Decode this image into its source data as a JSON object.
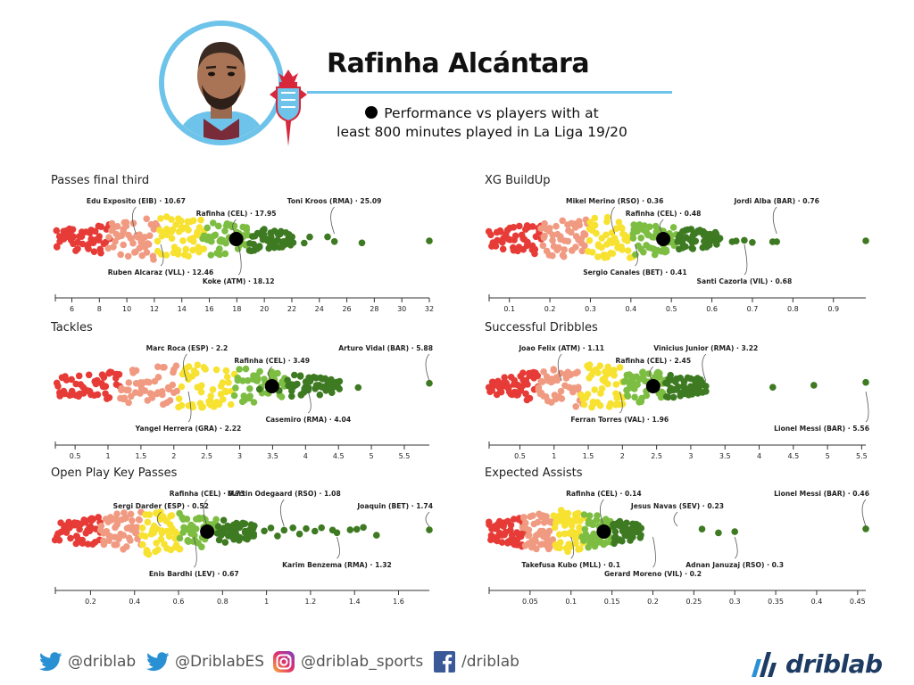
{
  "header": {
    "player_name": "Rafinha Alcántara",
    "subtitle_line1": "Performance vs players with at",
    "subtitle_line2": "least 800 minutes played in La Liga 19/20",
    "accent_color": "#6ec3ea",
    "crest_color": "#d7283b"
  },
  "footer": {
    "twitter_1": "@driblab",
    "twitter_2": "@DriblabES",
    "instagram": "@driblab_sports",
    "facebook": "/driblab",
    "brand": "driblab",
    "brand_color": "#1e3b63",
    "icons": [
      "twitter-icon",
      "twitter-icon",
      "instagram-icon",
      "facebook-icon",
      "driblab-logo-icon"
    ]
  },
  "palette": [
    "#e63b36",
    "#f19a82",
    "#f7e231",
    "#7cbd42",
    "#3e7a22"
  ],
  "chart_data": [
    {
      "type": "scatter",
      "title": "Passes final third",
      "min": 4.8,
      "max": 32,
      "ticks": [
        6,
        8,
        10,
        12,
        14,
        16,
        18,
        20,
        22,
        24,
        26,
        28,
        30,
        32
      ],
      "highlight": 17.95,
      "labels": [
        {
          "text": "Edu Exposito (EIB) · 10.67",
          "value": 10.67,
          "pos": "above"
        },
        {
          "text": "Rafinha (CEL) · 17.95",
          "value": 17.95,
          "pos": "above"
        },
        {
          "text": "Toni Kroos (RMA) · 25.09",
          "value": 25.09,
          "pos": "above"
        },
        {
          "text": "Ruben Alcaraz (VLL) · 12.46",
          "value": 12.46,
          "pos": "below"
        },
        {
          "text": "Koke (ATM) · 18.12",
          "value": 18.12,
          "pos": "below"
        }
      ],
      "outliers": [
        20.5,
        21.3,
        22.1,
        22.9,
        23.3,
        24.6,
        25.1,
        27.1,
        32.0
      ]
    },
    {
      "type": "scatter",
      "title": "XG BuildUp",
      "min": 0.05,
      "max": 0.98,
      "ticks": [
        0.1,
        0.2,
        0.3,
        0.4,
        0.5,
        0.6,
        0.7,
        0.8,
        0.9
      ],
      "highlight": 0.48,
      "labels": [
        {
          "text": "Mikel Merino (RSO) · 0.36",
          "value": 0.36,
          "pos": "above"
        },
        {
          "text": "Rafinha (CEL) · 0.48",
          "value": 0.48,
          "pos": "above"
        },
        {
          "text": "Jordi Alba (BAR) · 0.76",
          "value": 0.76,
          "pos": "above"
        },
        {
          "text": "Sergio Canales (BET) · 0.41",
          "value": 0.41,
          "pos": "below"
        },
        {
          "text": "Santi Cazorla (VIL) · 0.68",
          "value": 0.68,
          "pos": "below"
        }
      ],
      "outliers": [
        0.58,
        0.6,
        0.62,
        0.65,
        0.66,
        0.68,
        0.7,
        0.75,
        0.76,
        0.98
      ]
    },
    {
      "type": "scatter",
      "title": "Tackles",
      "min": 0.2,
      "max": 5.88,
      "ticks": [
        0.5,
        1,
        1.5,
        2,
        2.5,
        3,
        3.5,
        4,
        4.5,
        5,
        5.5
      ],
      "highlight": 3.49,
      "labels": [
        {
          "text": "Marc Roca (ESP) · 2.2",
          "value": 2.2,
          "pos": "above"
        },
        {
          "text": "Rafinha (CEL) · 3.49",
          "value": 3.49,
          "pos": "above"
        },
        {
          "text": "Arturo Vidal (BAR) · 5.88",
          "value": 5.88,
          "pos": "above"
        },
        {
          "text": "Casemiro (RMA) · 4.04",
          "value": 4.04,
          "pos": "below"
        },
        {
          "text": "Yangel Herrera (GRA) · 2.22",
          "value": 2.22,
          "pos": "below"
        }
      ],
      "outliers": [
        3.3,
        3.6,
        4.04,
        4.8,
        5.88
      ]
    },
    {
      "type": "scatter",
      "title": "Successful Dribbles",
      "min": 0.05,
      "max": 5.56,
      "ticks": [
        0.5,
        1,
        1.5,
        2,
        2.5,
        3,
        3.5,
        4,
        4.5,
        5,
        5.5
      ],
      "highlight": 2.45,
      "labels": [
        {
          "text": "Joao Felix (ATM) · 1.11",
          "value": 1.11,
          "pos": "above"
        },
        {
          "text": "Rafinha (CEL) · 2.45",
          "value": 2.45,
          "pos": "above"
        },
        {
          "text": "Vinicius Junior (RMA) · 3.22",
          "value": 3.22,
          "pos": "above"
        },
        {
          "text": "Ferran Torres (VAL) · 1.96",
          "value": 1.96,
          "pos": "below"
        },
        {
          "text": "Lionel Messi (BAR) · 5.56",
          "value": 5.56,
          "pos": "below"
        }
      ],
      "outliers": [
        2.9,
        3.0,
        3.05,
        3.22,
        4.2,
        4.8,
        5.56
      ]
    },
    {
      "type": "scatter",
      "title": "Open Play Key Passes",
      "min": 0.04,
      "max": 1.74,
      "ticks": [
        0.2,
        0.4,
        0.6,
        0.8,
        1,
        1.2,
        1.4,
        1.6
      ],
      "highlight": 0.73,
      "labels": [
        {
          "text": "Rafinha (CEL) · 0.73",
          "value": 0.73,
          "pos": "above"
        },
        {
          "text": "Sergi Darder (ESP) · 0.52",
          "value": 0.52,
          "pos": "above"
        },
        {
          "text": "Martin Odegaard (RSO) · 1.08",
          "value": 1.08,
          "pos": "above"
        },
        {
          "text": "Joaquin (BET) · 1.74",
          "value": 1.74,
          "pos": "above"
        },
        {
          "text": "Enis Bardhi (LEV) · 0.67",
          "value": 0.67,
          "pos": "below"
        },
        {
          "text": "Karim Benzema (RMA) · 1.32",
          "value": 1.32,
          "pos": "below"
        }
      ],
      "outliers": [
        0.99,
        1.02,
        1.05,
        1.08,
        1.12,
        1.15,
        1.18,
        1.22,
        1.25,
        1.3,
        1.32,
        1.38,
        1.41,
        1.44,
        1.5,
        1.74
      ]
    },
    {
      "type": "scatter",
      "title": "Expected Assists",
      "min": 0.0,
      "max": 0.46,
      "ticks": [
        0.05,
        0.1,
        0.15,
        0.2,
        0.25,
        0.3,
        0.35,
        0.4,
        0.45
      ],
      "highlight": 0.14,
      "labels": [
        {
          "text": "Rafinha (CEL) · 0.14",
          "value": 0.14,
          "pos": "above"
        },
        {
          "text": "Jesus Navas (SEV) · 0.23",
          "value": 0.23,
          "pos": "above"
        },
        {
          "text": "Lionel Messi (BAR) · 0.46",
          "value": 0.46,
          "pos": "above"
        },
        {
          "text": "Takefusa Kubo (MLL) · 0.1",
          "value": 0.1,
          "pos": "below"
        },
        {
          "text": "Gerard Moreno (VIL) · 0.2",
          "value": 0.2,
          "pos": "below"
        },
        {
          "text": "Adnan Januzaj (RSO) · 0.3",
          "value": 0.3,
          "pos": "below"
        }
      ],
      "outliers": [
        0.26,
        0.28,
        0.3,
        0.46
      ]
    }
  ]
}
